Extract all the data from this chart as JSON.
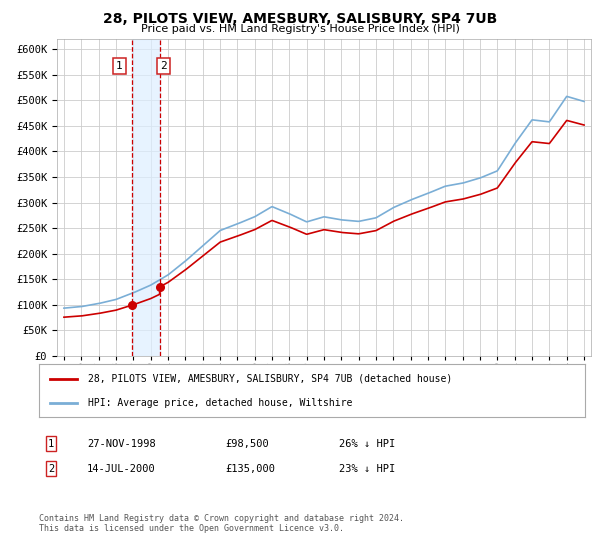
{
  "title": "28, PILOTS VIEW, AMESBURY, SALISBURY, SP4 7UB",
  "subtitle": "Price paid vs. HM Land Registry's House Price Index (HPI)",
  "legend_line1": "28, PILOTS VIEW, AMESBURY, SALISBURY, SP4 7UB (detached house)",
  "legend_line2": "HPI: Average price, detached house, Wiltshire",
  "footer": "Contains HM Land Registry data © Crown copyright and database right 2024.\nThis data is licensed under the Open Government Licence v3.0.",
  "sale1_date": "27-NOV-1998",
  "sale1_price_str": "£98,500",
  "sale1_hpi_str": "26% ↓ HPI",
  "sale2_date": "14-JUL-2000",
  "sale2_price_str": "£135,000",
  "sale2_hpi_str": "23% ↓ HPI",
  "sale1_year": 1998.9,
  "sale2_year": 2000.54,
  "sale1_price_val": 98500,
  "sale2_price_val": 135000,
  "ylim": [
    0,
    620000
  ],
  "xlim": [
    1994.6,
    2025.4
  ],
  "red_color": "#cc0000",
  "blue_color": "#7aaed6",
  "shade_color": "#ddeeff",
  "background_color": "#ffffff",
  "grid_color": "#cccccc",
  "years_hpi": [
    1995,
    1996,
    1997,
    1998,
    1999,
    2000,
    2001,
    2002,
    2003,
    2004,
    2005,
    2006,
    2007,
    2008,
    2009,
    2010,
    2011,
    2012,
    2013,
    2014,
    2015,
    2016,
    2017,
    2018,
    2019,
    2020,
    2021,
    2022,
    2023,
    2024,
    2025
  ],
  "hpi_values": [
    93000,
    96000,
    102000,
    110000,
    123000,
    138000,
    158000,
    185000,
    215000,
    245000,
    258000,
    272000,
    292000,
    278000,
    262000,
    272000,
    266000,
    263000,
    270000,
    290000,
    305000,
    318000,
    332000,
    338000,
    348000,
    362000,
    415000,
    462000,
    458000,
    508000,
    498000
  ]
}
